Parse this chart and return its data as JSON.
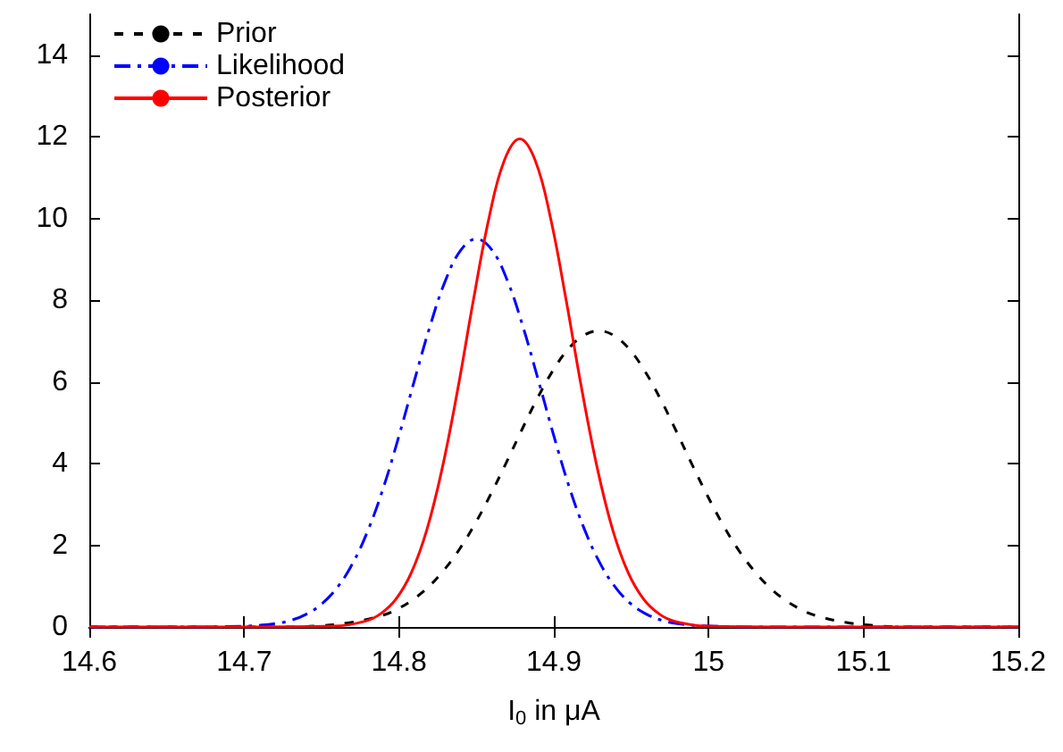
{
  "chart_data": {
    "type": "line",
    "xlabel": "I$_{0}$ in μA",
    "xlim": [
      14.6,
      15.2
    ],
    "xticks": [
      14.6,
      14.7,
      14.8,
      14.9,
      15,
      15.1,
      15.2
    ],
    "ylim": [
      0,
      15
    ],
    "yticks": [
      0,
      2,
      4,
      6,
      8,
      10,
      12,
      14
    ],
    "grid": false,
    "legend": "top left",
    "marker": "none",
    "series": [
      {
        "name": "Prior",
        "color": "#000000",
        "line_style": "dashed",
        "x": [
          14.6,
          14.729,
          14.749,
          14.769,
          14.789,
          14.799,
          14.809,
          14.819,
          14.829,
          14.839,
          14.849,
          14.859,
          14.869,
          14.879,
          14.889,
          14.899,
          14.909,
          14.919,
          14.929,
          14.939,
          14.949,
          14.959,
          14.969,
          14.979,
          14.989,
          14.999,
          15.009,
          15.019,
          15.029,
          15.039,
          15.049,
          15.059,
          15.069,
          15.089,
          15.109,
          15.129,
          15.2
        ],
        "values": [
          0,
          0,
          0.03,
          0.11,
          0.28,
          0.44,
          0.67,
          0.98,
          1.39,
          1.9,
          2.52,
          3.23,
          4.0,
          4.8,
          5.57,
          6.25,
          6.79,
          7.13,
          7.25,
          7.13,
          6.79,
          6.25,
          5.57,
          4.8,
          4.0,
          3.23,
          2.52,
          1.9,
          1.39,
          0.98,
          0.67,
          0.44,
          0.28,
          0.11,
          0.03,
          0,
          0
        ]
      },
      {
        "name": "Likelihood",
        "color": "#0000ff",
        "line_style": "dashdot",
        "x": [
          14.6,
          14.65,
          14.7,
          14.72,
          14.73,
          14.74,
          14.75,
          14.76,
          14.77,
          14.78,
          14.79,
          14.8,
          14.81,
          14.82,
          14.83,
          14.84,
          14.85,
          14.86,
          14.87,
          14.88,
          14.89,
          14.9,
          14.91,
          14.92,
          14.93,
          14.94,
          14.95,
          14.96,
          14.97,
          14.98,
          15.0,
          15.05,
          15.2
        ],
        "values": [
          0,
          0,
          0.02,
          0.08,
          0.16,
          0.31,
          0.56,
          0.96,
          1.55,
          2.37,
          3.42,
          4.68,
          6.04,
          7.36,
          8.48,
          9.23,
          9.5,
          9.23,
          8.48,
          7.36,
          6.04,
          4.68,
          3.42,
          2.37,
          1.55,
          0.96,
          0.56,
          0.31,
          0.16,
          0.08,
          0.02,
          0,
          0
        ]
      },
      {
        "name": "Posterior",
        "color": "#ff0000",
        "line_style": "solid",
        "x": [
          14.6,
          14.7,
          14.758,
          14.778,
          14.788,
          14.798,
          14.808,
          14.818,
          14.828,
          14.838,
          14.848,
          14.858,
          14.868,
          14.878,
          14.888,
          14.898,
          14.908,
          14.918,
          14.928,
          14.938,
          14.948,
          14.958,
          14.968,
          14.978,
          14.998,
          15.05,
          15.2
        ],
        "values": [
          0,
          0,
          0.02,
          0.14,
          0.32,
          0.68,
          1.33,
          2.38,
          3.9,
          5.83,
          7.99,
          9.99,
          11.42,
          11.95,
          11.42,
          9.99,
          7.99,
          5.83,
          3.9,
          2.38,
          1.33,
          0.68,
          0.32,
          0.14,
          0.02,
          0,
          0
        ]
      }
    ]
  }
}
